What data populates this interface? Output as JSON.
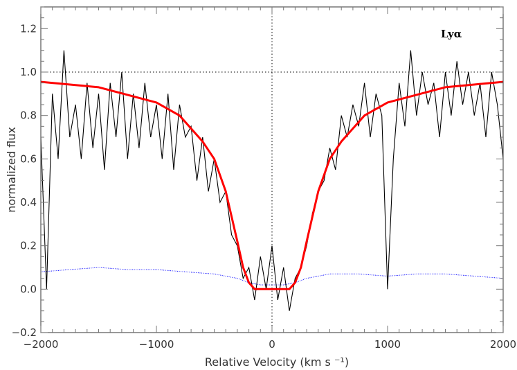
{
  "chart_data": {
    "type": "line",
    "title": "",
    "annotation": "Lyα",
    "xlabel": "Relative Velocity (km s ⁻¹)",
    "ylabel": "normalized flux",
    "xlim": [
      -2000,
      2000
    ],
    "ylim": [
      -0.2,
      1.3
    ],
    "xticks": [
      -2000,
      -1000,
      0,
      1000,
      2000
    ],
    "xtick_labels": [
      "−2000",
      "−1000",
      "0",
      "1000",
      "2000"
    ],
    "yticks": [
      -0.2,
      0.0,
      0.2,
      0.4,
      0.6,
      0.8,
      1.0,
      1.2
    ],
    "ytick_labels": [
      "−0.2",
      "0.0",
      "0.2",
      "0.4",
      "0.6",
      "0.8",
      "1.0",
      "1.2"
    ],
    "reference_lines": {
      "y": 1.0,
      "x": 0
    },
    "grid": false,
    "colors": {
      "spectrum": "#000000",
      "fit": "#ff0000",
      "error": "#0000ff"
    },
    "series": [
      {
        "style": "black noisy line (spectrum)",
        "x": [
          -2000,
          -1950,
          -1900,
          -1850,
          -1800,
          -1750,
          -1700,
          -1650,
          -1600,
          -1550,
          -1500,
          -1450,
          -1400,
          -1350,
          -1300,
          -1250,
          -1200,
          -1150,
          -1100,
          -1050,
          -1000,
          -950,
          -900,
          -850,
          -800,
          -750,
          -700,
          -650,
          -600,
          -550,
          -500,
          -450,
          -400,
          -350,
          -300,
          -250,
          -200,
          -150,
          -100,
          -50,
          0,
          50,
          100,
          150,
          200,
          250,
          300,
          350,
          400,
          450,
          500,
          550,
          600,
          650,
          700,
          750,
          800,
          850,
          900,
          950,
          1000,
          1050,
          1100,
          1150,
          1200,
          1250,
          1300,
          1350,
          1400,
          1450,
          1500,
          1550,
          1600,
          1650,
          1700,
          1750,
          1800,
          1850,
          1900,
          1950,
          2000
        ],
        "y": [
          0.7,
          0.0,
          0.9,
          0.6,
          1.1,
          0.7,
          0.85,
          0.6,
          0.95,
          0.65,
          0.9,
          0.55,
          0.95,
          0.7,
          1.0,
          0.6,
          0.9,
          0.65,
          0.95,
          0.7,
          0.85,
          0.6,
          0.9,
          0.55,
          0.85,
          0.7,
          0.75,
          0.5,
          0.7,
          0.45,
          0.6,
          0.4,
          0.45,
          0.25,
          0.2,
          0.05,
          0.1,
          -0.05,
          0.15,
          0.0,
          0.2,
          -0.05,
          0.1,
          -0.1,
          0.05,
          0.1,
          0.2,
          0.35,
          0.45,
          0.5,
          0.65,
          0.55,
          0.8,
          0.7,
          0.85,
          0.75,
          0.95,
          0.7,
          0.9,
          0.8,
          0.0,
          0.6,
          0.95,
          0.75,
          1.1,
          0.8,
          1.0,
          0.85,
          0.95,
          0.7,
          1.0,
          0.8,
          1.05,
          0.85,
          1.0,
          0.8,
          0.95,
          0.7,
          1.0,
          0.85,
          0.6
        ]
      },
      {
        "style": "red thick line (fit)",
        "x": [
          -2000,
          -1500,
          -1000,
          -800,
          -600,
          -500,
          -400,
          -300,
          -250,
          -200,
          -150,
          0,
          150,
          200,
          250,
          300,
          400,
          500,
          600,
          800,
          1000,
          1500,
          2000
        ],
        "y": [
          0.955,
          0.93,
          0.86,
          0.8,
          0.68,
          0.6,
          0.45,
          0.22,
          0.1,
          0.03,
          0.0,
          0.0,
          0.0,
          0.03,
          0.1,
          0.22,
          0.45,
          0.6,
          0.68,
          0.8,
          0.86,
          0.93,
          0.955
        ]
      },
      {
        "style": "blue dotted line (error)",
        "x": [
          -2000,
          -1750,
          -1500,
          -1250,
          -1000,
          -750,
          -500,
          -300,
          -200,
          -100,
          0,
          100,
          200,
          300,
          500,
          750,
          1000,
          1250,
          1500,
          1750,
          2000
        ],
        "y": [
          0.08,
          0.09,
          0.1,
          0.09,
          0.09,
          0.08,
          0.07,
          0.05,
          0.03,
          0.02,
          0.02,
          0.02,
          0.03,
          0.05,
          0.07,
          0.07,
          0.06,
          0.07,
          0.07,
          0.06,
          0.05
        ]
      }
    ]
  }
}
